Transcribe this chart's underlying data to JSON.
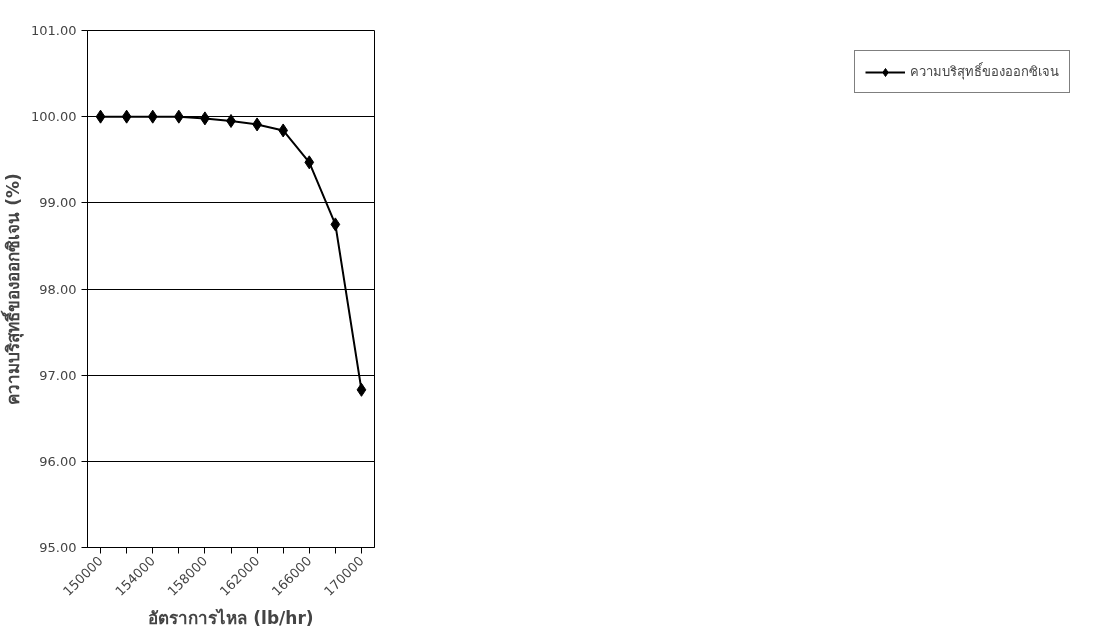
{
  "chart_data": {
    "type": "line",
    "xlabel": "อัตราการไหล (lb/hr)",
    "ylabel": "ความบริสุทธิ์ของออกซิเจน (%)",
    "categories": [
      "150000",
      null,
      "154000",
      null,
      "158000",
      null,
      "162000",
      null,
      "166000",
      null,
      "170000"
    ],
    "series": [
      {
        "name": "ความบริสุทธิ์ของออกซิเจน",
        "color": "#000000",
        "values": [
          100.0,
          100.0,
          100.0,
          100.0,
          99.98,
          99.95,
          99.91,
          99.84,
          99.47,
          98.75,
          96.83
        ]
      }
    ],
    "ylim": [
      95,
      101
    ],
    "yticks": [
      {
        "value": 95,
        "label": "95.00"
      },
      {
        "value": 96,
        "label": "96.00"
      },
      {
        "value": 97,
        "label": "97.00"
      },
      {
        "value": 98,
        "label": "98.00"
      },
      {
        "value": 99,
        "label": "99.00"
      },
      {
        "value": 100,
        "label": "100.00"
      },
      {
        "value": 101,
        "label": "101.00"
      }
    ],
    "grid": "y",
    "legend": "right",
    "marker": "diamond",
    "line_style": "solid"
  }
}
